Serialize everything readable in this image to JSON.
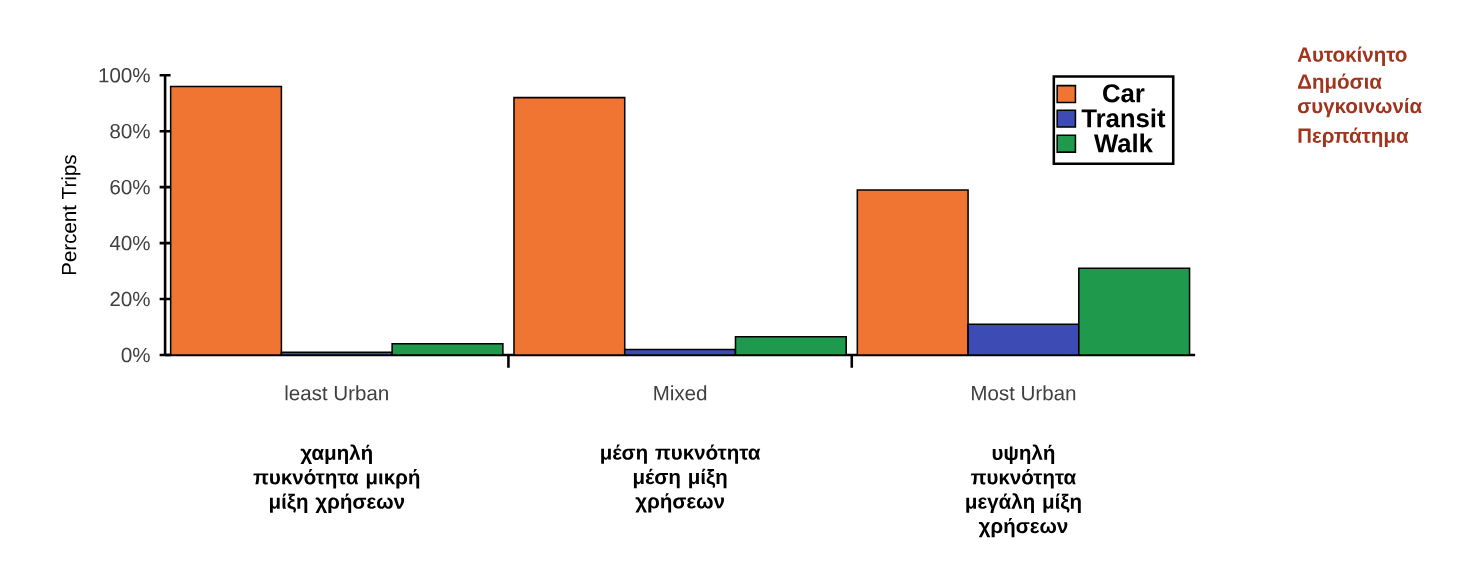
{
  "chart_data": {
    "type": "bar",
    "ylabel": "Percent Trips",
    "categories": [
      "least Urban",
      "Mixed",
      "Most Urban"
    ],
    "series": [
      {
        "name": "Car",
        "color": "#f07432",
        "values": [
          96,
          92,
          59
        ]
      },
      {
        "name": "Transit",
        "color": "#3c4cb4",
        "values": [
          1,
          2,
          11
        ]
      },
      {
        "name": "Walk",
        "color": "#1f9a4c",
        "values": [
          4,
          6.5,
          31
        ]
      }
    ],
    "ylim": [
      0,
      100
    ],
    "yticks": [
      {
        "value": 0,
        "label": "0%"
      },
      {
        "value": 20,
        "label": "20%"
      },
      {
        "value": 40,
        "label": "40%"
      },
      {
        "value": 60,
        "label": "60%"
      },
      {
        "value": 80,
        "label": "80%"
      },
      {
        "value": 100,
        "label": "100%"
      }
    ],
    "legend": "top right",
    "grid": false,
    "annotations": [
      "χαμηλή πυκνότητα μικρή μίξη χρήσεων",
      "μέση πυκνότητα μέση μίξη χρήσεων",
      "υψηλή πυκνότητα μεγάλη μίξη χρήσεων",
      "Αυτοκίνητο",
      "Δημόσια συγκοινωνία",
      "Περπάτημα"
    ]
  }
}
